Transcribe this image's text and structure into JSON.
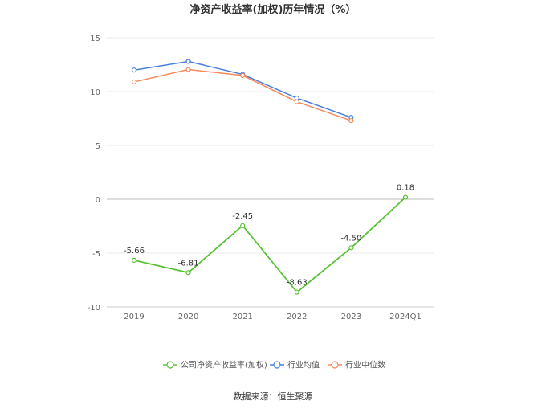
{
  "chart_data": {
    "type": "line",
    "title": "净资产收益率(加权)历年情况（%）",
    "categories": [
      "2019",
      "2020",
      "2021",
      "2022",
      "2023",
      "2024Q1"
    ],
    "ylim": [
      -10,
      15
    ],
    "yticks": [
      15,
      10,
      5,
      0,
      -5,
      -10
    ],
    "grid": true,
    "legend_position": "bottom",
    "series": [
      {
        "name": "公司净资产收益率(加权)",
        "color": "#5ac236",
        "values": [
          -5.66,
          -6.81,
          -2.45,
          -8.63,
          -4.5,
          0.18
        ],
        "labels": [
          "-5.66",
          "-6.81",
          "-2.45",
          "-8.63",
          "-4.50",
          "0.18"
        ]
      },
      {
        "name": "行业均值",
        "color": "#4a7fe0",
        "values": [
          12.0,
          12.8,
          11.6,
          9.4,
          7.6,
          null
        ]
      },
      {
        "name": "行业中位数",
        "color": "#f5895a",
        "values": [
          10.9,
          12.05,
          11.5,
          9.05,
          7.3,
          null
        ]
      }
    ],
    "source": "数据来源：恒生聚源"
  }
}
